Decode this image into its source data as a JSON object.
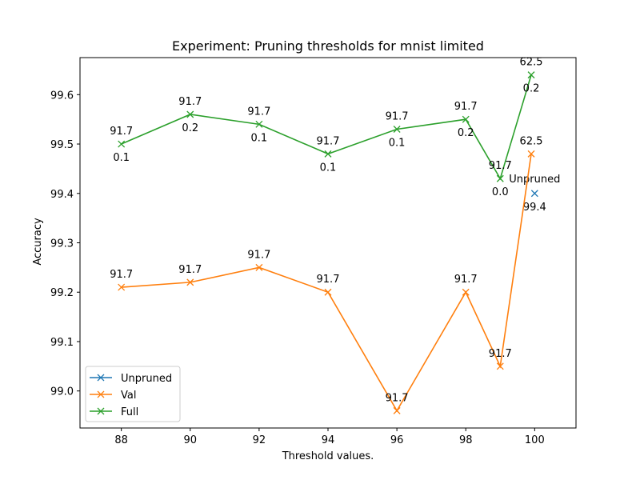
{
  "chart_data": {
    "type": "line",
    "title": "Experiment: Pruning thresholds for mnist limited",
    "xlabel": "Threshold values.",
    "ylabel": "Accuracy",
    "xlim": [
      86.8,
      101.2
    ],
    "ylim": [
      98.925,
      99.675
    ],
    "xticks": [
      88,
      90,
      92,
      94,
      96,
      98,
      100
    ],
    "yticks": [
      99.0,
      99.1,
      99.2,
      99.3,
      99.4,
      99.5,
      99.6
    ],
    "grid": false,
    "legend": "lower-left",
    "series": [
      {
        "name": "Unpruned",
        "color": "#1f77b4",
        "marker": "x",
        "x": [
          100
        ],
        "y": [
          99.4
        ],
        "point_labels": [
          {
            "text": "Unpruned",
            "pos": "above"
          },
          {
            "text": "99.4",
            "pos": "below"
          }
        ]
      },
      {
        "name": "Val",
        "color": "#ff7f0e",
        "marker": "x",
        "x": [
          88,
          90,
          92,
          94,
          96,
          98,
          99,
          99.9
        ],
        "y": [
          99.21,
          99.22,
          99.25,
          99.2,
          98.96,
          99.2,
          99.05,
          99.48
        ],
        "above_labels": [
          "91.7",
          "91.7",
          "91.7",
          "91.7",
          "91.7",
          "91.7",
          "91.7",
          "62.5"
        ]
      },
      {
        "name": "Full",
        "color": "#2ca02c",
        "marker": "x",
        "x": [
          88,
          90,
          92,
          94,
          96,
          98,
          99,
          99.9
        ],
        "y": [
          99.5,
          99.56,
          99.54,
          99.48,
          99.53,
          99.55,
          99.43,
          99.64
        ],
        "above_labels": [
          "91.7",
          "91.7",
          "91.7",
          "91.7",
          "91.7",
          "91.7",
          "91.7",
          "62.5"
        ],
        "below_labels": [
          "0.1",
          "0.2",
          "0.1",
          "0.1",
          "0.1",
          "0.2",
          "0.0",
          "0.2"
        ]
      }
    ]
  }
}
